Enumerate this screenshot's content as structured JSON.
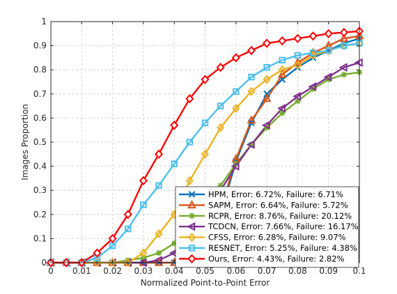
{
  "chart_data": {
    "type": "line",
    "title": "",
    "xlabel": "Normalized Point-to-Point Error",
    "ylabel": "Images Proportion",
    "xlim": [
      0,
      0.1
    ],
    "ylim": [
      0,
      1
    ],
    "grid": true,
    "legend_position": "bottom-right",
    "x": [
      0,
      0.005,
      0.01,
      0.015,
      0.02,
      0.025,
      0.03,
      0.035,
      0.04,
      0.045,
      0.05,
      0.055,
      0.06,
      0.065,
      0.07,
      0.075,
      0.08,
      0.085,
      0.09,
      0.095,
      0.1
    ],
    "x_ticks": [
      "0",
      "0.01",
      "0.02",
      "0.03",
      "0.04",
      "0.05",
      "0.06",
      "0.07",
      "0.08",
      "0.09",
      "0.1"
    ],
    "y_ticks": [
      "0",
      "0.1",
      "0.2",
      "0.3",
      "0.4",
      "0.5",
      "0.6",
      "0.7",
      "0.8",
      "0.9",
      "1"
    ],
    "series": [
      {
        "name": "HPM, Error: 6.72%, Failure: 6.71%",
        "color": "#0072BD",
        "marker": "x",
        "values": [
          0,
          0,
          0,
          0,
          0,
          0,
          0,
          0,
          0,
          0.01,
          0.05,
          0.2,
          0.42,
          0.58,
          0.7,
          0.76,
          0.81,
          0.85,
          0.88,
          0.91,
          0.93
        ]
      },
      {
        "name": "SAPM, Error: 6.64%, Failure: 5.72%",
        "color": "#D95319",
        "marker": "triangle",
        "values": [
          0,
          0,
          0,
          0,
          0,
          0,
          0,
          0,
          0,
          0.01,
          0.06,
          0.22,
          0.43,
          0.59,
          0.68,
          0.78,
          0.83,
          0.87,
          0.9,
          0.93,
          0.94
        ]
      },
      {
        "name": "RCPR, Error: 8.76%, Failure: 20.12%",
        "color": "#77AC30",
        "marker": "asterisk",
        "values": [
          0,
          0,
          0,
          0,
          0,
          0.01,
          0.02,
          0.04,
          0.08,
          0.14,
          0.22,
          0.32,
          0.41,
          0.49,
          0.56,
          0.62,
          0.67,
          0.72,
          0.76,
          0.78,
          0.79
        ]
      },
      {
        "name": "TCDCN, Error: 7.66%, Failure: 16.17%",
        "color": "#7E2F8E",
        "marker": "triangle-left",
        "values": [
          0,
          0,
          0,
          0,
          0,
          0,
          0,
          0.01,
          0.04,
          0.1,
          0.18,
          0.3,
          0.4,
          0.49,
          0.57,
          0.64,
          0.69,
          0.73,
          0.77,
          0.81,
          0.83
        ]
      },
      {
        "name": "CFSS, Error: 6.28%, Failure: 9.07%",
        "color": "#EDB120",
        "marker": "diamond",
        "values": [
          0,
          0,
          0,
          0,
          0,
          0,
          0.04,
          0.12,
          0.2,
          0.34,
          0.45,
          0.56,
          0.64,
          0.71,
          0.76,
          0.8,
          0.82,
          0.86,
          0.88,
          0.9,
          0.91
        ]
      },
      {
        "name": "RESNET, Error: 5.25%, Failure: 4.38%",
        "color": "#4DBEEE",
        "marker": "square",
        "values": [
          0,
          0,
          0,
          0.02,
          0.07,
          0.14,
          0.24,
          0.32,
          0.41,
          0.5,
          0.58,
          0.65,
          0.71,
          0.77,
          0.81,
          0.84,
          0.86,
          0.87,
          0.88,
          0.9,
          0.91
        ]
      },
      {
        "name": "Ours, Error: 4.43%, Failure: 2.82%",
        "color": "#FF0000",
        "marker": "diamond-open",
        "values": [
          0,
          0,
          0,
          0.04,
          0.1,
          0.2,
          0.34,
          0.45,
          0.57,
          0.68,
          0.76,
          0.81,
          0.85,
          0.88,
          0.91,
          0.92,
          0.93,
          0.94,
          0.95,
          0.955,
          0.96
        ]
      }
    ]
  }
}
